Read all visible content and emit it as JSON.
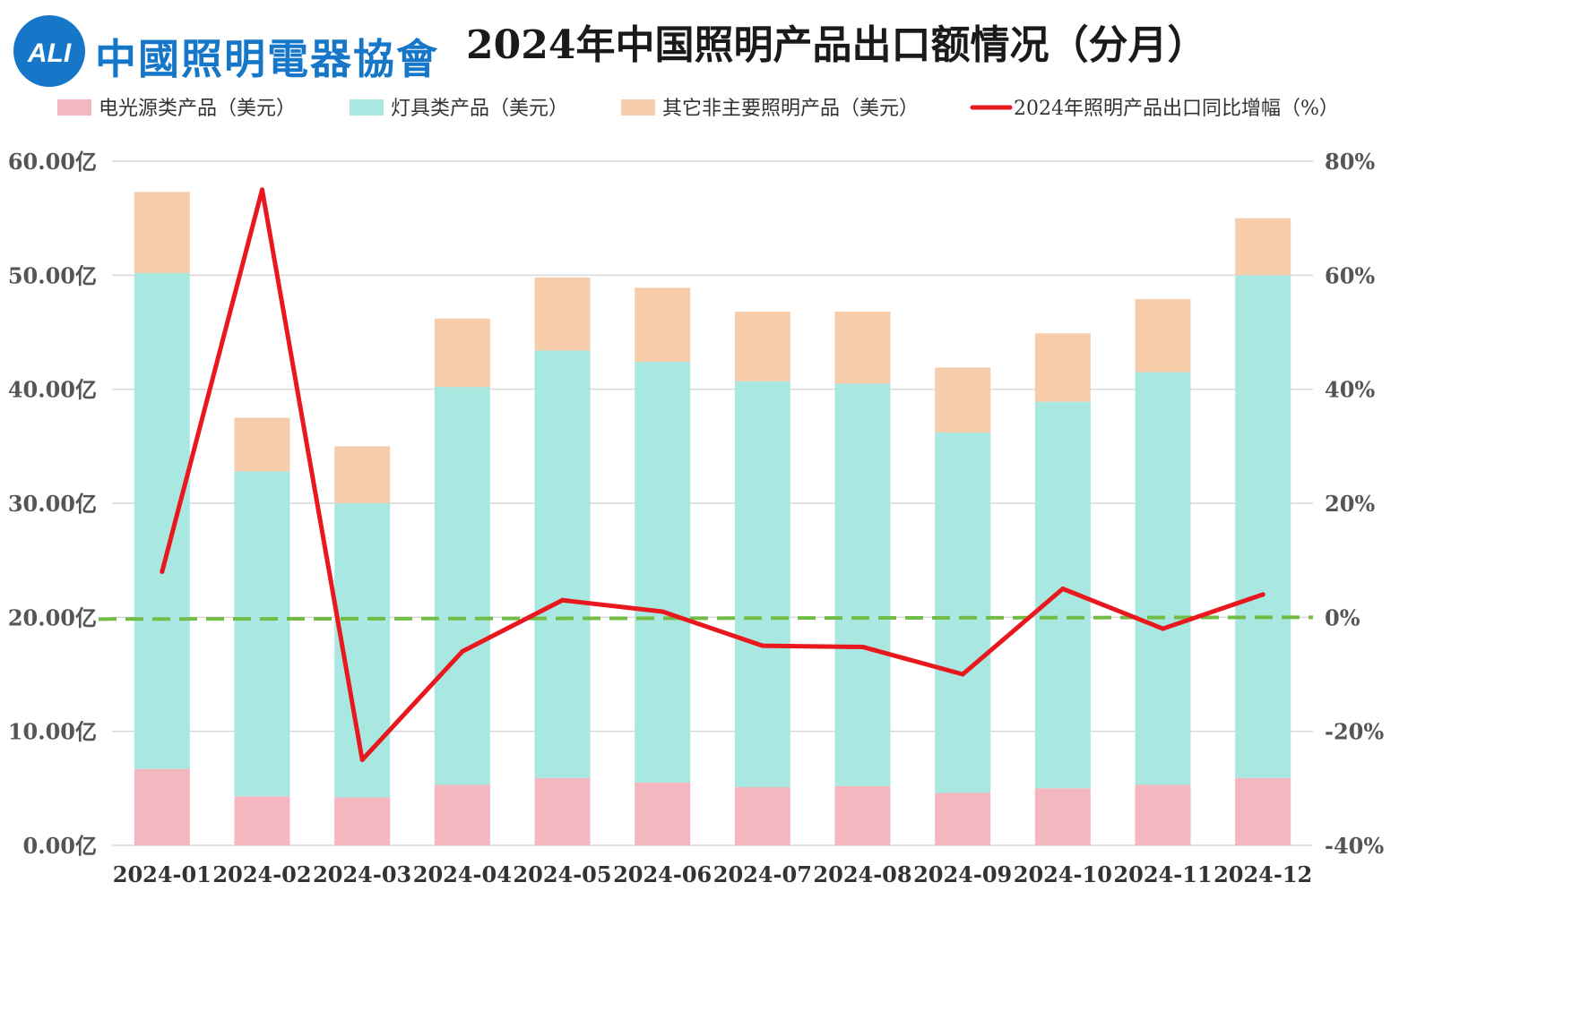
{
  "header": {
    "title": "2024年中国照明产品出口额情况（分月）",
    "logo_mark": "ALI",
    "logo_text": "中國照明電器協會"
  },
  "colors": {
    "series1": "#f4b6bf",
    "series2": "#a9e8e1",
    "series3": "#f7ccaa",
    "line": "#e8181e",
    "zero_line": "#72bb44",
    "grid": "#d9d9d9",
    "logo": "#1677c9"
  },
  "chart_data": {
    "type": "bar",
    "subtype": "stacked bar + line (secondary axis)",
    "categories": [
      "2024-01",
      "2024-02",
      "2024-03",
      "2024-04",
      "2024-05",
      "2024-06",
      "2024-07",
      "2024-08",
      "2024-09",
      "2024-10",
      "2024-11",
      "2024-12"
    ],
    "series": [
      {
        "name": "电光源类产品（美元）",
        "axis": "left",
        "kind": "bar",
        "values": [
          6.7,
          4.3,
          4.2,
          5.3,
          5.9,
          5.5,
          5.1,
          5.2,
          4.6,
          5.0,
          5.3,
          5.9
        ]
      },
      {
        "name": "灯具类产品（美元）",
        "axis": "left",
        "kind": "bar",
        "values": [
          43.5,
          28.5,
          25.8,
          34.9,
          37.5,
          36.9,
          35.6,
          35.3,
          31.6,
          33.9,
          36.2,
          44.1
        ]
      },
      {
        "name": "其它非主要照明产品（美元）",
        "axis": "left",
        "kind": "bar",
        "values": [
          7.1,
          4.7,
          5.0,
          6.0,
          6.4,
          6.5,
          6.1,
          6.3,
          5.7,
          6.0,
          6.4,
          5.0
        ]
      },
      {
        "name": "2024年照明产品出口同比增幅（%）",
        "axis": "right",
        "kind": "line",
        "values": [
          8,
          75,
          -25,
          -6,
          3,
          1,
          -5,
          -5.2,
          -10,
          5,
          -2,
          4
        ]
      }
    ],
    "left_axis": {
      "min": 0,
      "max": 60,
      "ticks": [
        "0.00亿",
        "10.00亿",
        "20.00亿",
        "30.00亿",
        "40.00亿",
        "50.00亿",
        "60.00亿"
      ]
    },
    "right_axis": {
      "min": -40,
      "max": 80,
      "ticks": [
        "-40%",
        "-20%",
        "0%",
        "20%",
        "40%",
        "60%",
        "80%"
      ]
    },
    "reference_line": {
      "axis": "right",
      "value": 0,
      "style": "dashed"
    },
    "legend_position": "top",
    "grid": true
  }
}
